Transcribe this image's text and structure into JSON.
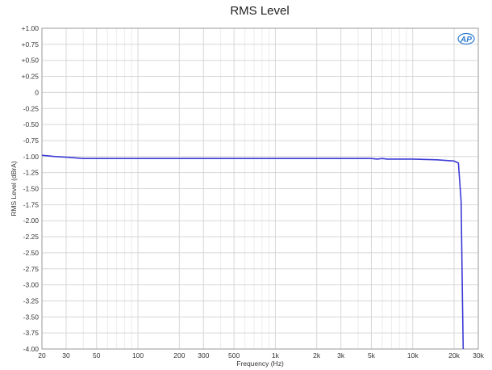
{
  "chart_data": {
    "type": "line",
    "title": "RMS Level",
    "xlabel": "Frequency (Hz)",
    "ylabel": "RMS Level (dBrA)",
    "xscale": "log",
    "xlim": [
      20,
      30000
    ],
    "ylim": [
      -4.0,
      1.0
    ],
    "grid": true,
    "x_ticks": [
      20,
      30,
      50,
      100,
      200,
      300,
      500,
      1000,
      2000,
      3000,
      5000,
      10000,
      20000,
      30000
    ],
    "x_tick_labels": [
      "20",
      "30",
      "50",
      "100",
      "200",
      "300",
      "500",
      "1k",
      "2k",
      "3k",
      "5k",
      "10k",
      "20k",
      "30k"
    ],
    "y_ticks": [
      1.0,
      0.75,
      0.5,
      0.25,
      0,
      -0.25,
      -0.5,
      -0.75,
      -1.0,
      -1.25,
      -1.5,
      -1.75,
      -2.0,
      -2.25,
      -2.5,
      -2.75,
      -3.0,
      -3.25,
      -3.5,
      -3.75,
      -4.0
    ],
    "y_tick_labels": [
      "+1.00",
      "+0.75",
      "+0.50",
      "+0.25",
      "0",
      "-0.25",
      "-0.50",
      "-0.75",
      "-1.00",
      "-1.25",
      "-1.50",
      "-1.75",
      "-2.00",
      "-2.25",
      "-2.50",
      "-2.75",
      "-3.00",
      "-3.25",
      "-3.50",
      "-3.75",
      "-4.00"
    ],
    "series": [
      {
        "color": "#3b3bd6",
        "x": [
          20,
          25,
          30,
          35,
          40,
          50,
          100,
          1000,
          5000,
          5500,
          6000,
          6500,
          7000,
          10000,
          15000,
          20000,
          21500,
          22500,
          23000,
          23300
        ],
        "y": [
          -0.98,
          -1.0,
          -1.01,
          -1.02,
          -1.03,
          -1.03,
          -1.03,
          -1.03,
          -1.03,
          -1.04,
          -1.03,
          -1.04,
          -1.04,
          -1.04,
          -1.05,
          -1.07,
          -1.1,
          -1.7,
          -3.2,
          -4.0
        ]
      }
    ]
  },
  "logo": {
    "text": "AP",
    "color": "#2f7bd3"
  }
}
